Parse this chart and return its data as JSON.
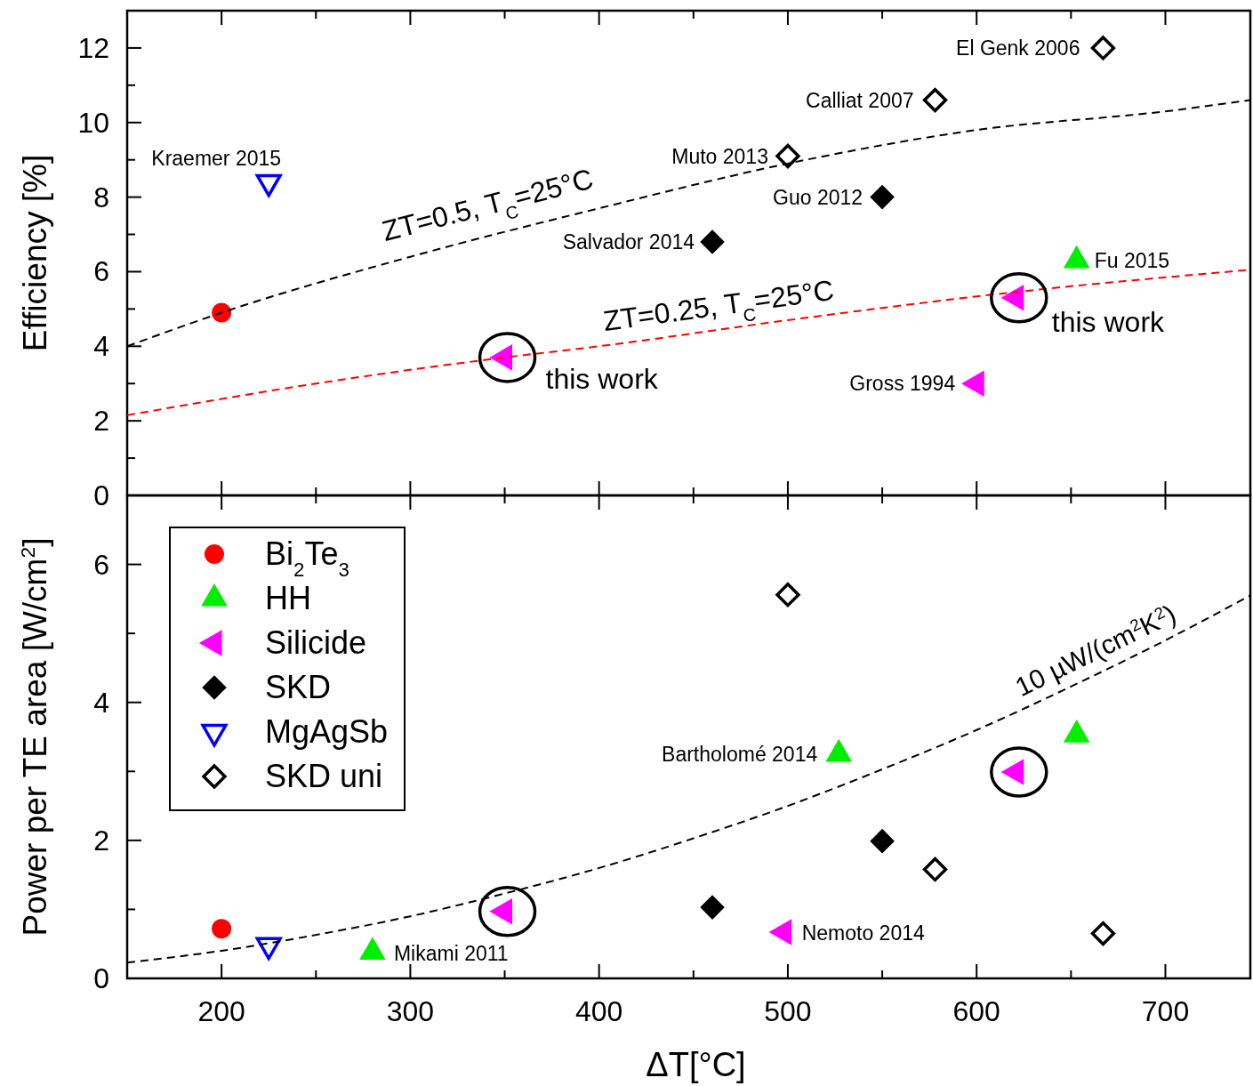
{
  "chart_data": [
    {
      "type": "scatter",
      "ylabel": "Efficiency [%]",
      "xlim": [
        150,
        745
      ],
      "ylim": [
        0,
        13
      ],
      "tick_labels": "y",
      "legend": false,
      "xticks": [
        {
          "value": 150,
          "label": null
        },
        200,
        {
          "value": 250,
          "label": null
        },
        300,
        {
          "value": 350,
          "label": null
        },
        400,
        {
          "value": 450,
          "label": null
        },
        500,
        {
          "value": 550,
          "label": null
        },
        600,
        {
          "value": 650,
          "label": null
        },
        700
      ],
      "yticks": [
        0,
        {
          "value": 1,
          "label": null
        },
        2,
        {
          "value": 3,
          "label": null
        },
        4,
        {
          "value": 5,
          "label": null
        },
        6,
        {
          "value": 7,
          "label": null
        },
        8,
        {
          "value": 9,
          "label": null
        },
        10,
        {
          "value": 11,
          "label": null
        },
        12
      ],
      "series": [
        {
          "color": "#ff0000",
          "marker": "circle",
          "x": [
            200
          ],
          "values": [
            4.9
          ]
        },
        {
          "color": "#00ee00",
          "marker": "triangle",
          "x": [
            653
          ],
          "values": [
            6.3
          ]
        },
        {
          "color": "#ff00ff",
          "marker": "triangle-left",
          "x": [
            350,
            621,
            600
          ],
          "values": [
            3.7,
            5.3,
            3.0
          ]
        },
        {
          "color": "#000000",
          "marker": "diamond",
          "x": [
            460,
            550
          ],
          "values": [
            6.8,
            8.0
          ]
        },
        {
          "color": "#0000ff",
          "marker": "triangle-down",
          "x": [
            225
          ],
          "values": [
            8.4
          ]
        },
        {
          "color": "#000000",
          "marker": "diamond-open",
          "x": [
            500,
            578,
            667
          ],
          "values": [
            9.1,
            10.6,
            12.0
          ]
        },
        {
          "type": "line",
          "name": "ZT=0.5, T$_{C}$=25°C",
          "color": "#000000",
          "line_style": "dashed",
          "x": [
            150,
            200,
            300,
            400,
            500,
            600,
            700,
            745
          ],
          "values": [
            4.0,
            4.9,
            6.4,
            7.7,
            8.9,
            9.8,
            10.3,
            10.6
          ]
        },
        {
          "type": "line",
          "name": "ZT=0.25, T$_{C}$=25°C",
          "color": "#ff0000",
          "line_style": "dashed",
          "x": [
            150,
            250,
            350,
            400,
            500,
            620,
            745
          ],
          "values": [
            2.15,
            3.0,
            3.7,
            4.0,
            4.7,
            5.45,
            6.05
          ]
        }
      ],
      "annotations": [
        {
          "text": "Kraemer 2015",
          "x": 225,
          "y": 8.4
        },
        {
          "text": "Salvador 2014",
          "x": 460,
          "y": 6.8
        },
        {
          "text": "Guo 2012",
          "x": 550,
          "y": 8.0
        },
        {
          "text": "Muto 2013",
          "x": 500,
          "y": 9.1
        },
        {
          "text": "Calliat 2007",
          "x": 578,
          "y": 10.6
        },
        {
          "text": "El Genk 2006",
          "x": 667,
          "y": 12.0
        },
        {
          "text": "Fu 2015",
          "x": 653,
          "y": 6.3
        },
        {
          "text": "Gross 1994",
          "x": 600,
          "y": 3.0
        },
        {
          "text": "this work",
          "x": 350,
          "y": 3.7
        },
        {
          "text": "this work",
          "x": 621,
          "y": 5.3
        }
      ]
    },
    {
      "type": "scatter",
      "xlabel": "ΔT[°C]",
      "ylabel": "Power per TE area [W/cm$^{2}$]",
      "xlim": [
        150,
        745
      ],
      "ylim": [
        0,
        7
      ],
      "legend": "top left",
      "xticks": [
        {
          "value": 150,
          "label": null
        },
        200,
        {
          "value": 250,
          "label": null
        },
        300,
        {
          "value": 350,
          "label": null
        },
        400,
        {
          "value": 450,
          "label": null
        },
        500,
        {
          "value": 550,
          "label": null
        },
        600,
        {
          "value": 650,
          "label": null
        },
        700
      ],
      "yticks": [
        0,
        {
          "value": 1,
          "label": null
        },
        2,
        {
          "value": 3,
          "label": null
        },
        4,
        {
          "value": 5,
          "label": null
        },
        6
      ],
      "series": [
        {
          "name": "Bi$_{2}$Te$_{3}$",
          "color": "#ff0000",
          "marker": "circle",
          "x": [
            200
          ],
          "values": [
            0.72
          ]
        },
        {
          "name": "HH",
          "color": "#00ee00",
          "marker": "triangle",
          "x": [
            280,
            527,
            653
          ],
          "values": [
            0.38,
            3.25,
            3.53
          ]
        },
        {
          "name": "Silicide",
          "color": "#ff00ff",
          "marker": "triangle-left",
          "x": [
            350,
            498,
            621
          ],
          "values": [
            0.97,
            0.67,
            2.99
          ]
        },
        {
          "name": "SKD",
          "color": "#000000",
          "marker": "diamond",
          "x": [
            460,
            550
          ],
          "values": [
            1.03,
            1.99
          ]
        },
        {
          "name": "MgAgSb",
          "color": "#0000ff",
          "marker": "triangle-down",
          "x": [
            225
          ],
          "values": [
            0.48
          ]
        },
        {
          "name": "SKD uni",
          "color": "#000000",
          "marker": "diamond-open",
          "x": [
            500,
            578,
            667
          ],
          "values": [
            5.56,
            1.58,
            0.65
          ]
        },
        {
          "type": "line",
          "name": "10 µW/(cm$^{2}$K$^{2}$)",
          "color": "#000000",
          "line_style": "dashed",
          "x": [
            150,
            200,
            250,
            300,
            350,
            400,
            450,
            500,
            550,
            600,
            650,
            700,
            745
          ],
          "values": [
            0.23,
            0.4,
            0.63,
            0.9,
            1.23,
            1.6,
            2.03,
            2.5,
            3.03,
            3.6,
            4.23,
            4.9,
            5.55
          ]
        }
      ],
      "annotations": [
        {
          "text": "Bartholomé 2014",
          "x": 527,
          "y": 3.25
        },
        {
          "text": "Mikami 2011",
          "x": 280,
          "y": 0.38
        },
        {
          "text": "Nemoto 2014",
          "x": 498,
          "y": 0.67
        }
      ]
    }
  ]
}
